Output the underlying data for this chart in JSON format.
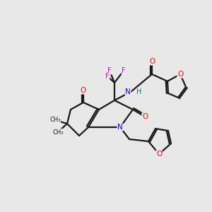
{
  "bg_color": "#e8e8e8",
  "bond_color": "#1a1a1a",
  "bond_lw": 1.5,
  "atom_colors": {
    "O": "#ff0000",
    "N": "#0000ff",
    "F": "#cc00cc",
    "H": "#008080",
    "C": "#1a1a1a"
  }
}
